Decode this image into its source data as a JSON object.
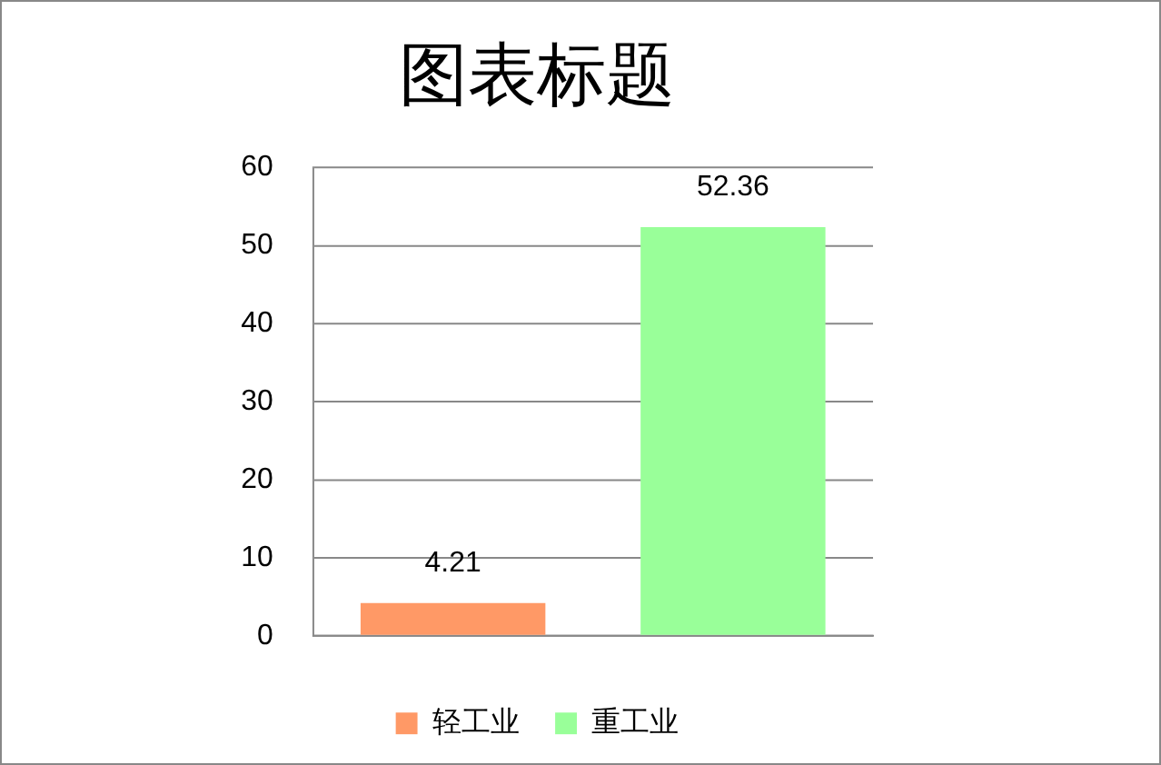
{
  "chart_data": {
    "type": "bar",
    "title": "图表标题",
    "categories": [
      null
    ],
    "series": [
      {
        "name": "轻工业",
        "color": "#ff9966",
        "values": [
          4.21
        ]
      },
      {
        "name": "重工业",
        "color": "#99ff99",
        "values": [
          52.36
        ]
      }
    ],
    "ylim": [
      0,
      60
    ],
    "yticks": [
      0,
      10,
      20,
      30,
      40,
      50,
      60
    ],
    "grid": "y",
    "legend": "bottom",
    "data_labels": true
  }
}
